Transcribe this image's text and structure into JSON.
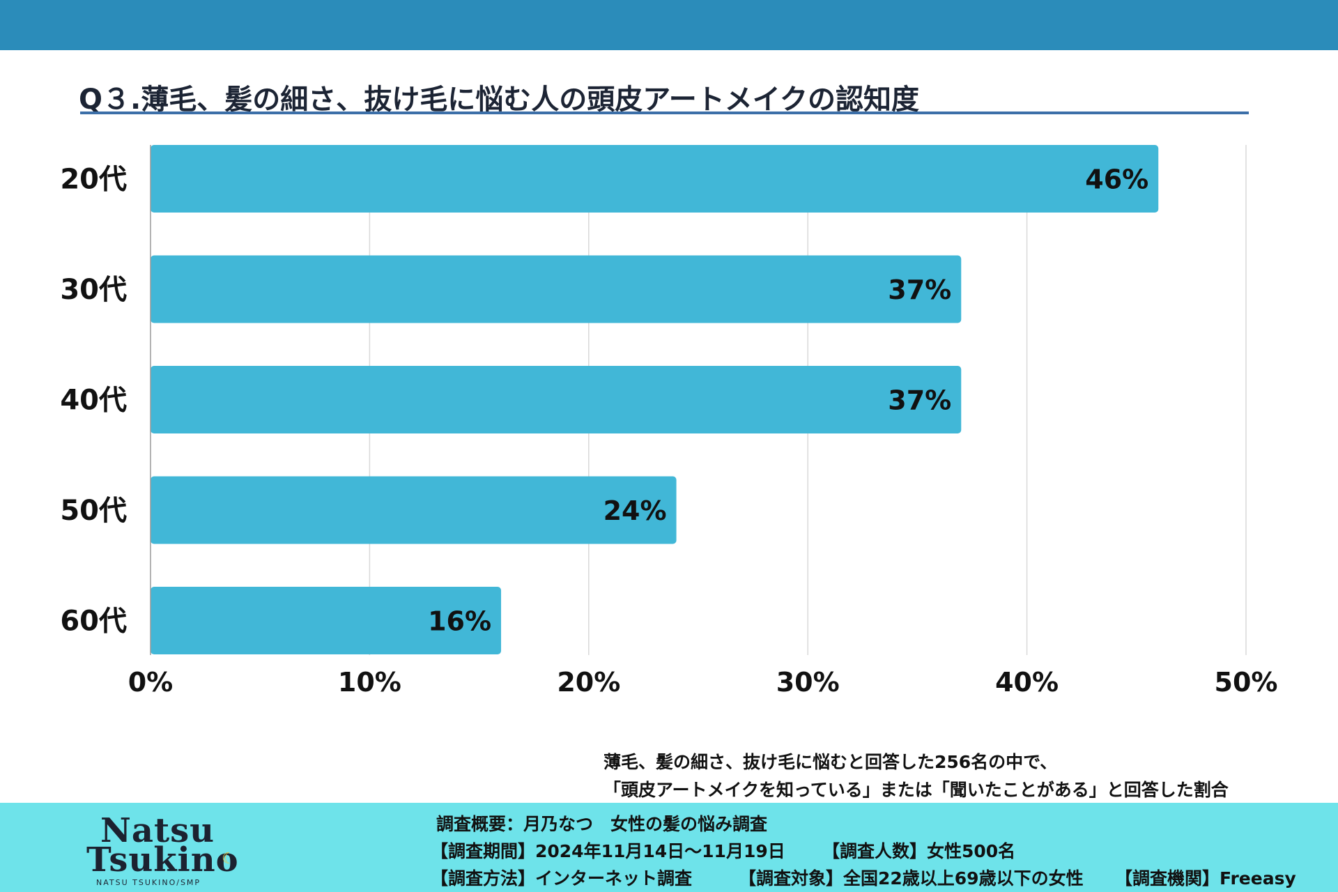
{
  "header": {
    "title": "Q３.薄毛、髪の細さ、抜け毛に悩む人の頭皮アートメイクの認知度"
  },
  "chart_data": {
    "type": "bar",
    "orientation": "horizontal",
    "categories": [
      "20代",
      "30代",
      "40代",
      "50代",
      "60代"
    ],
    "values": [
      46,
      37,
      37,
      24,
      16
    ],
    "value_labels": [
      "46%",
      "37%",
      "37%",
      "24%",
      "16%"
    ],
    "xlim": [
      0,
      50
    ],
    "x_ticks": [
      "0%",
      "10%",
      "20%",
      "30%",
      "40%",
      "50%"
    ],
    "grid": "vertical",
    "bar_color": "#41b7d7"
  },
  "note": {
    "line1": "薄毛、髪の細さ、抜け毛に悩むと回答した256名の中で、",
    "line2": "「頭皮アートメイクを知っている」または「聞いたことがある」と回答した割合"
  },
  "footer": {
    "logo_line1": "Natsu",
    "logo_line2": "Tsukino",
    "logo_sub": "NATSU TSUKINO/SMP",
    "survey_title": "調査概要：月乃なつ　女性の髪の悩み調査",
    "survey_period": "【調査期間】2024年11月14日〜11月19日",
    "survey_count": "【調査人数】女性500名",
    "survey_method": "【調査方法】インターネット調査",
    "survey_target": "【調査対象】全国22歳以上69歳以下の女性",
    "survey_org": "【調査機関】Freeasy"
  },
  "colors": {
    "top_band": "#2b8cba",
    "footer_band": "#6ee3ea",
    "title_rule": "#3c6fa8",
    "bar": "#41b7d7"
  }
}
